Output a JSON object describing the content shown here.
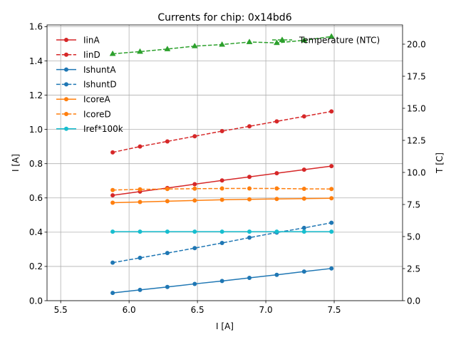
{
  "chart_data": {
    "type": "line",
    "title": "Currents for chip: 0x14bd6",
    "xlabel": "I [A]",
    "ylabel": "I [A]",
    "ylabel_right": "T [C]",
    "xlim": [
      5.4,
      8.0
    ],
    "ylim": [
      0.0,
      1.61
    ],
    "ylim_right": [
      0.0,
      21.5
    ],
    "xticks": [
      5.5,
      6.0,
      6.5,
      7.0,
      7.5
    ],
    "xtick_labels": [
      "5.5",
      "6.0",
      "6.5",
      "7.0",
      "7.5"
    ],
    "yticks": [
      0.0,
      0.2,
      0.4,
      0.6,
      0.8,
      1.0,
      1.2,
      1.4,
      1.6
    ],
    "ytick_labels": [
      "0.0",
      "0.2",
      "0.4",
      "0.6",
      "0.8",
      "1.0",
      "1.2",
      "1.4",
      "1.6"
    ],
    "yticks_right": [
      0.0,
      2.5,
      5.0,
      7.5,
      10.0,
      12.5,
      15.0,
      17.5,
      20.0
    ],
    "ytick_labels_right": [
      "0.0",
      "2.5",
      "5.0",
      "7.5",
      "10.0",
      "12.5",
      "15.0",
      "17.5",
      "20.0"
    ],
    "grid": true,
    "legend_left_position": "top-left",
    "legend_right_position": "top-right",
    "x": [
      5.88,
      6.08,
      6.28,
      6.48,
      6.68,
      6.88,
      7.08,
      7.28,
      7.48
    ],
    "series": [
      {
        "name": "IinA",
        "axis": "left",
        "color": "#d62728",
        "dashed": false,
        "marker": "circle",
        "values": [
          0.615,
          0.637,
          0.658,
          0.68,
          0.702,
          0.723,
          0.744,
          0.765,
          0.786
        ]
      },
      {
        "name": "IinD",
        "axis": "left",
        "color": "#d62728",
        "dashed": true,
        "marker": "circle",
        "values": [
          0.866,
          0.9,
          0.93,
          0.96,
          0.99,
          1.018,
          1.047,
          1.076,
          1.105
        ]
      },
      {
        "name": "IshuntA",
        "axis": "left",
        "color": "#1f77b4",
        "dashed": false,
        "marker": "circle",
        "values": [
          0.045,
          0.063,
          0.08,
          0.098,
          0.115,
          0.133,
          0.151,
          0.17,
          0.188
        ]
      },
      {
        "name": "IshuntD",
        "axis": "left",
        "color": "#1f77b4",
        "dashed": true,
        "marker": "circle",
        "values": [
          0.222,
          0.25,
          0.278,
          0.307,
          0.337,
          0.368,
          0.398,
          0.425,
          0.455
        ]
      },
      {
        "name": "IcoreA",
        "axis": "left",
        "color": "#ff7f0e",
        "dashed": false,
        "marker": "circle",
        "values": [
          0.572,
          0.576,
          0.581,
          0.585,
          0.589,
          0.592,
          0.594,
          0.596,
          0.598
        ]
      },
      {
        "name": "IcoreD",
        "axis": "left",
        "color": "#ff7f0e",
        "dashed": true,
        "marker": "circle",
        "values": [
          0.646,
          0.65,
          0.652,
          0.654,
          0.655,
          0.655,
          0.655,
          0.653,
          0.652
        ]
      },
      {
        "name": "Iref*100k",
        "axis": "left",
        "color": "#17becf",
        "dashed": false,
        "marker": "circle",
        "values": [
          0.403,
          0.403,
          0.403,
          0.403,
          0.403,
          0.403,
          0.403,
          0.403,
          0.403
        ]
      },
      {
        "name": "Temperature (NTC)",
        "axis": "right",
        "color": "#2ca02c",
        "dashed": true,
        "marker": "triangle",
        "values": [
          19.25,
          19.42,
          19.62,
          19.85,
          19.97,
          20.17,
          20.1,
          20.3,
          20.6
        ]
      }
    ]
  }
}
